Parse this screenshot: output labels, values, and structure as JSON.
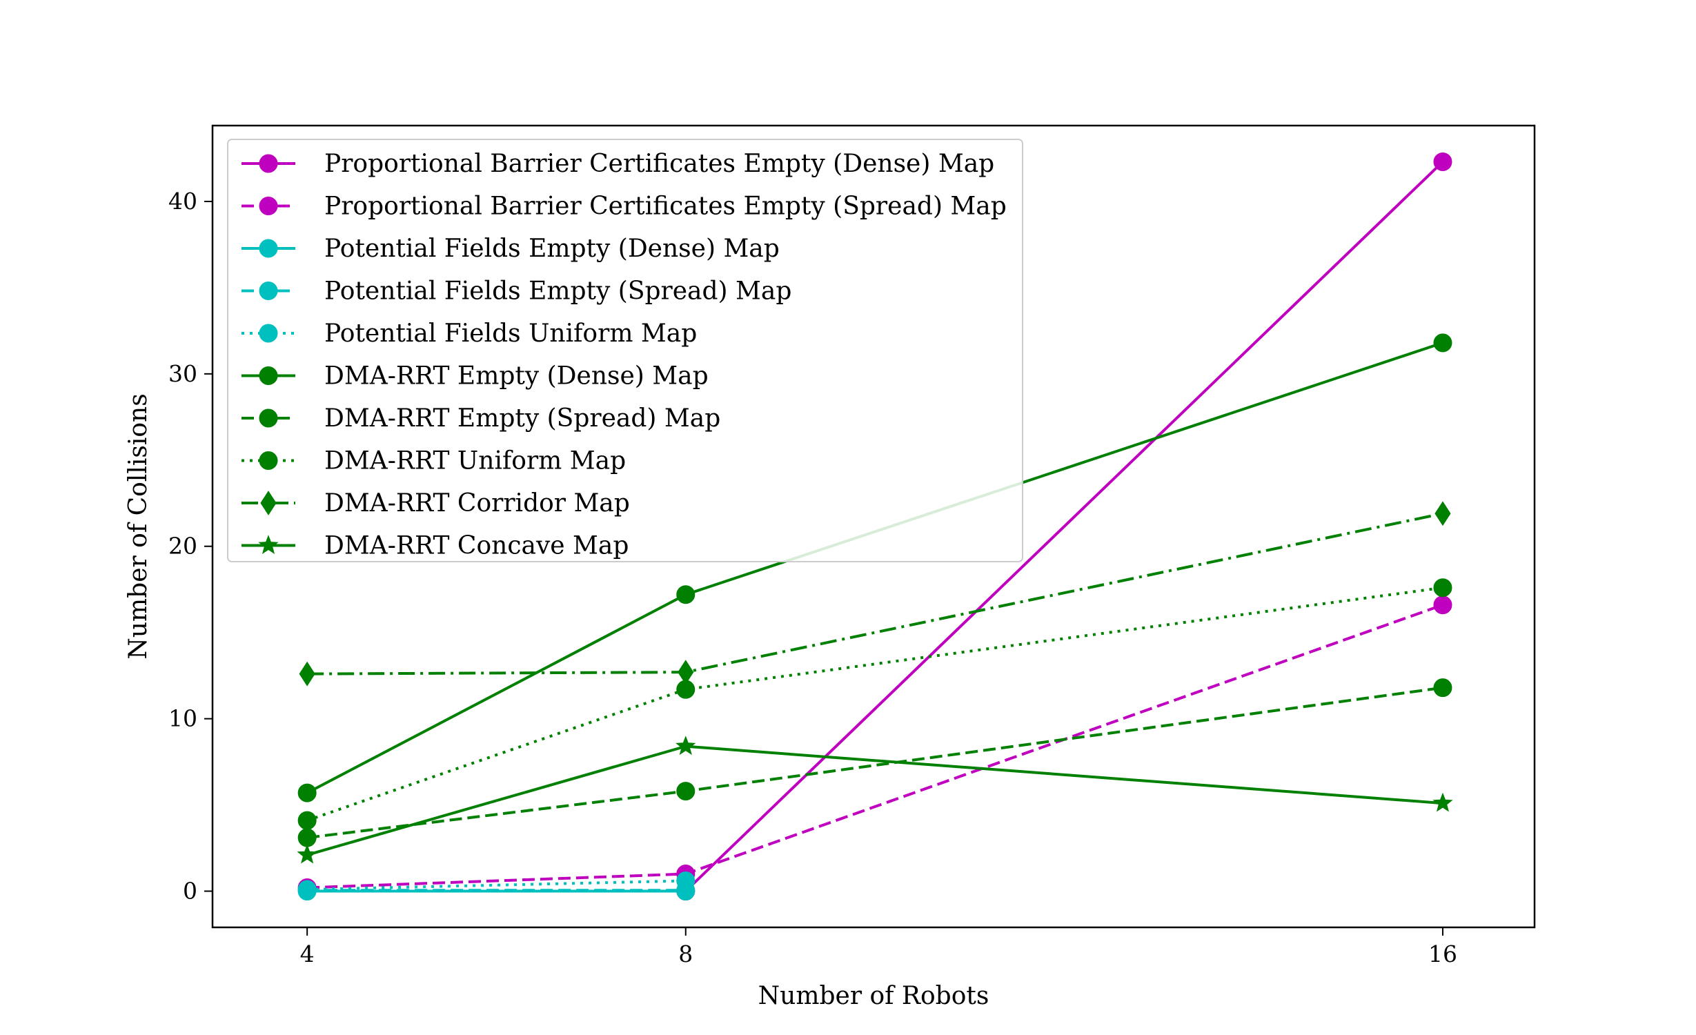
{
  "chart_data": {
    "type": "line",
    "title": "",
    "xlabel": "Number of Robots",
    "ylabel": "Number of Collisions",
    "x": [
      4,
      8,
      16
    ],
    "x_ticks": [
      "4",
      "8",
      "16"
    ],
    "y_ticks": [
      "0",
      "10",
      "20",
      "30",
      "40"
    ],
    "xlim": [
      3,
      16.97
    ],
    "ylim": [
      -2.1,
      44.4
    ],
    "grid": false,
    "legend_position": "upper-left",
    "series": [
      {
        "name": "Proportional Barrier Certificates Empty (Dense) Map",
        "x": [
          8,
          16
        ],
        "values": [
          0.0,
          42.3
        ],
        "color": "#bf00bf",
        "linestyle": "solid",
        "marker": "circle"
      },
      {
        "name": "Proportional Barrier Certificates Empty (Spread) Map",
        "x": [
          4,
          8,
          16
        ],
        "values": [
          0.2,
          1.0,
          16.6
        ],
        "color": "#bf00bf",
        "linestyle": "dashed",
        "marker": "circle"
      },
      {
        "name": "Potential Fields Empty (Dense) Map",
        "x": [
          4,
          8
        ],
        "values": [
          0.0,
          0.0
        ],
        "color": "#00bfbf",
        "linestyle": "solid",
        "marker": "circle"
      },
      {
        "name": "Potential Fields Empty (Spread) Map",
        "x": [
          4,
          8
        ],
        "values": [
          0.05,
          0.05
        ],
        "color": "#00bfbf",
        "linestyle": "dashed",
        "marker": "circle"
      },
      {
        "name": "Potential Fields Uniform Map",
        "x": [
          4,
          8
        ],
        "values": [
          0.1,
          0.6
        ],
        "color": "#00bfbf",
        "linestyle": "dotted",
        "marker": "circle"
      },
      {
        "name": "DMA-RRT Empty (Dense) Map",
        "x": [
          4,
          8,
          16
        ],
        "values": [
          5.7,
          17.2,
          31.8
        ],
        "color": "#008000",
        "linestyle": "solid",
        "marker": "circle"
      },
      {
        "name": "DMA-RRT Empty (Spread) Map",
        "x": [
          4,
          8,
          16
        ],
        "values": [
          3.1,
          5.8,
          11.8
        ],
        "color": "#008000",
        "linestyle": "dashed",
        "marker": "circle"
      },
      {
        "name": "DMA-RRT Uniform Map",
        "x": [
          4,
          8,
          16
        ],
        "values": [
          4.1,
          11.7,
          17.6
        ],
        "color": "#008000",
        "linestyle": "dotted",
        "marker": "circle"
      },
      {
        "name": "DMA-RRT Corridor Map",
        "x": [
          4,
          8,
          16
        ],
        "values": [
          12.6,
          12.7,
          21.9
        ],
        "color": "#008000",
        "linestyle": "dashdot",
        "marker": "diamond"
      },
      {
        "name": "DMA-RRT Concave Map",
        "x": [
          4,
          8,
          16
        ],
        "values": [
          2.1,
          8.4,
          5.1
        ],
        "color": "#008000",
        "linestyle": "solid",
        "marker": "star"
      }
    ]
  }
}
